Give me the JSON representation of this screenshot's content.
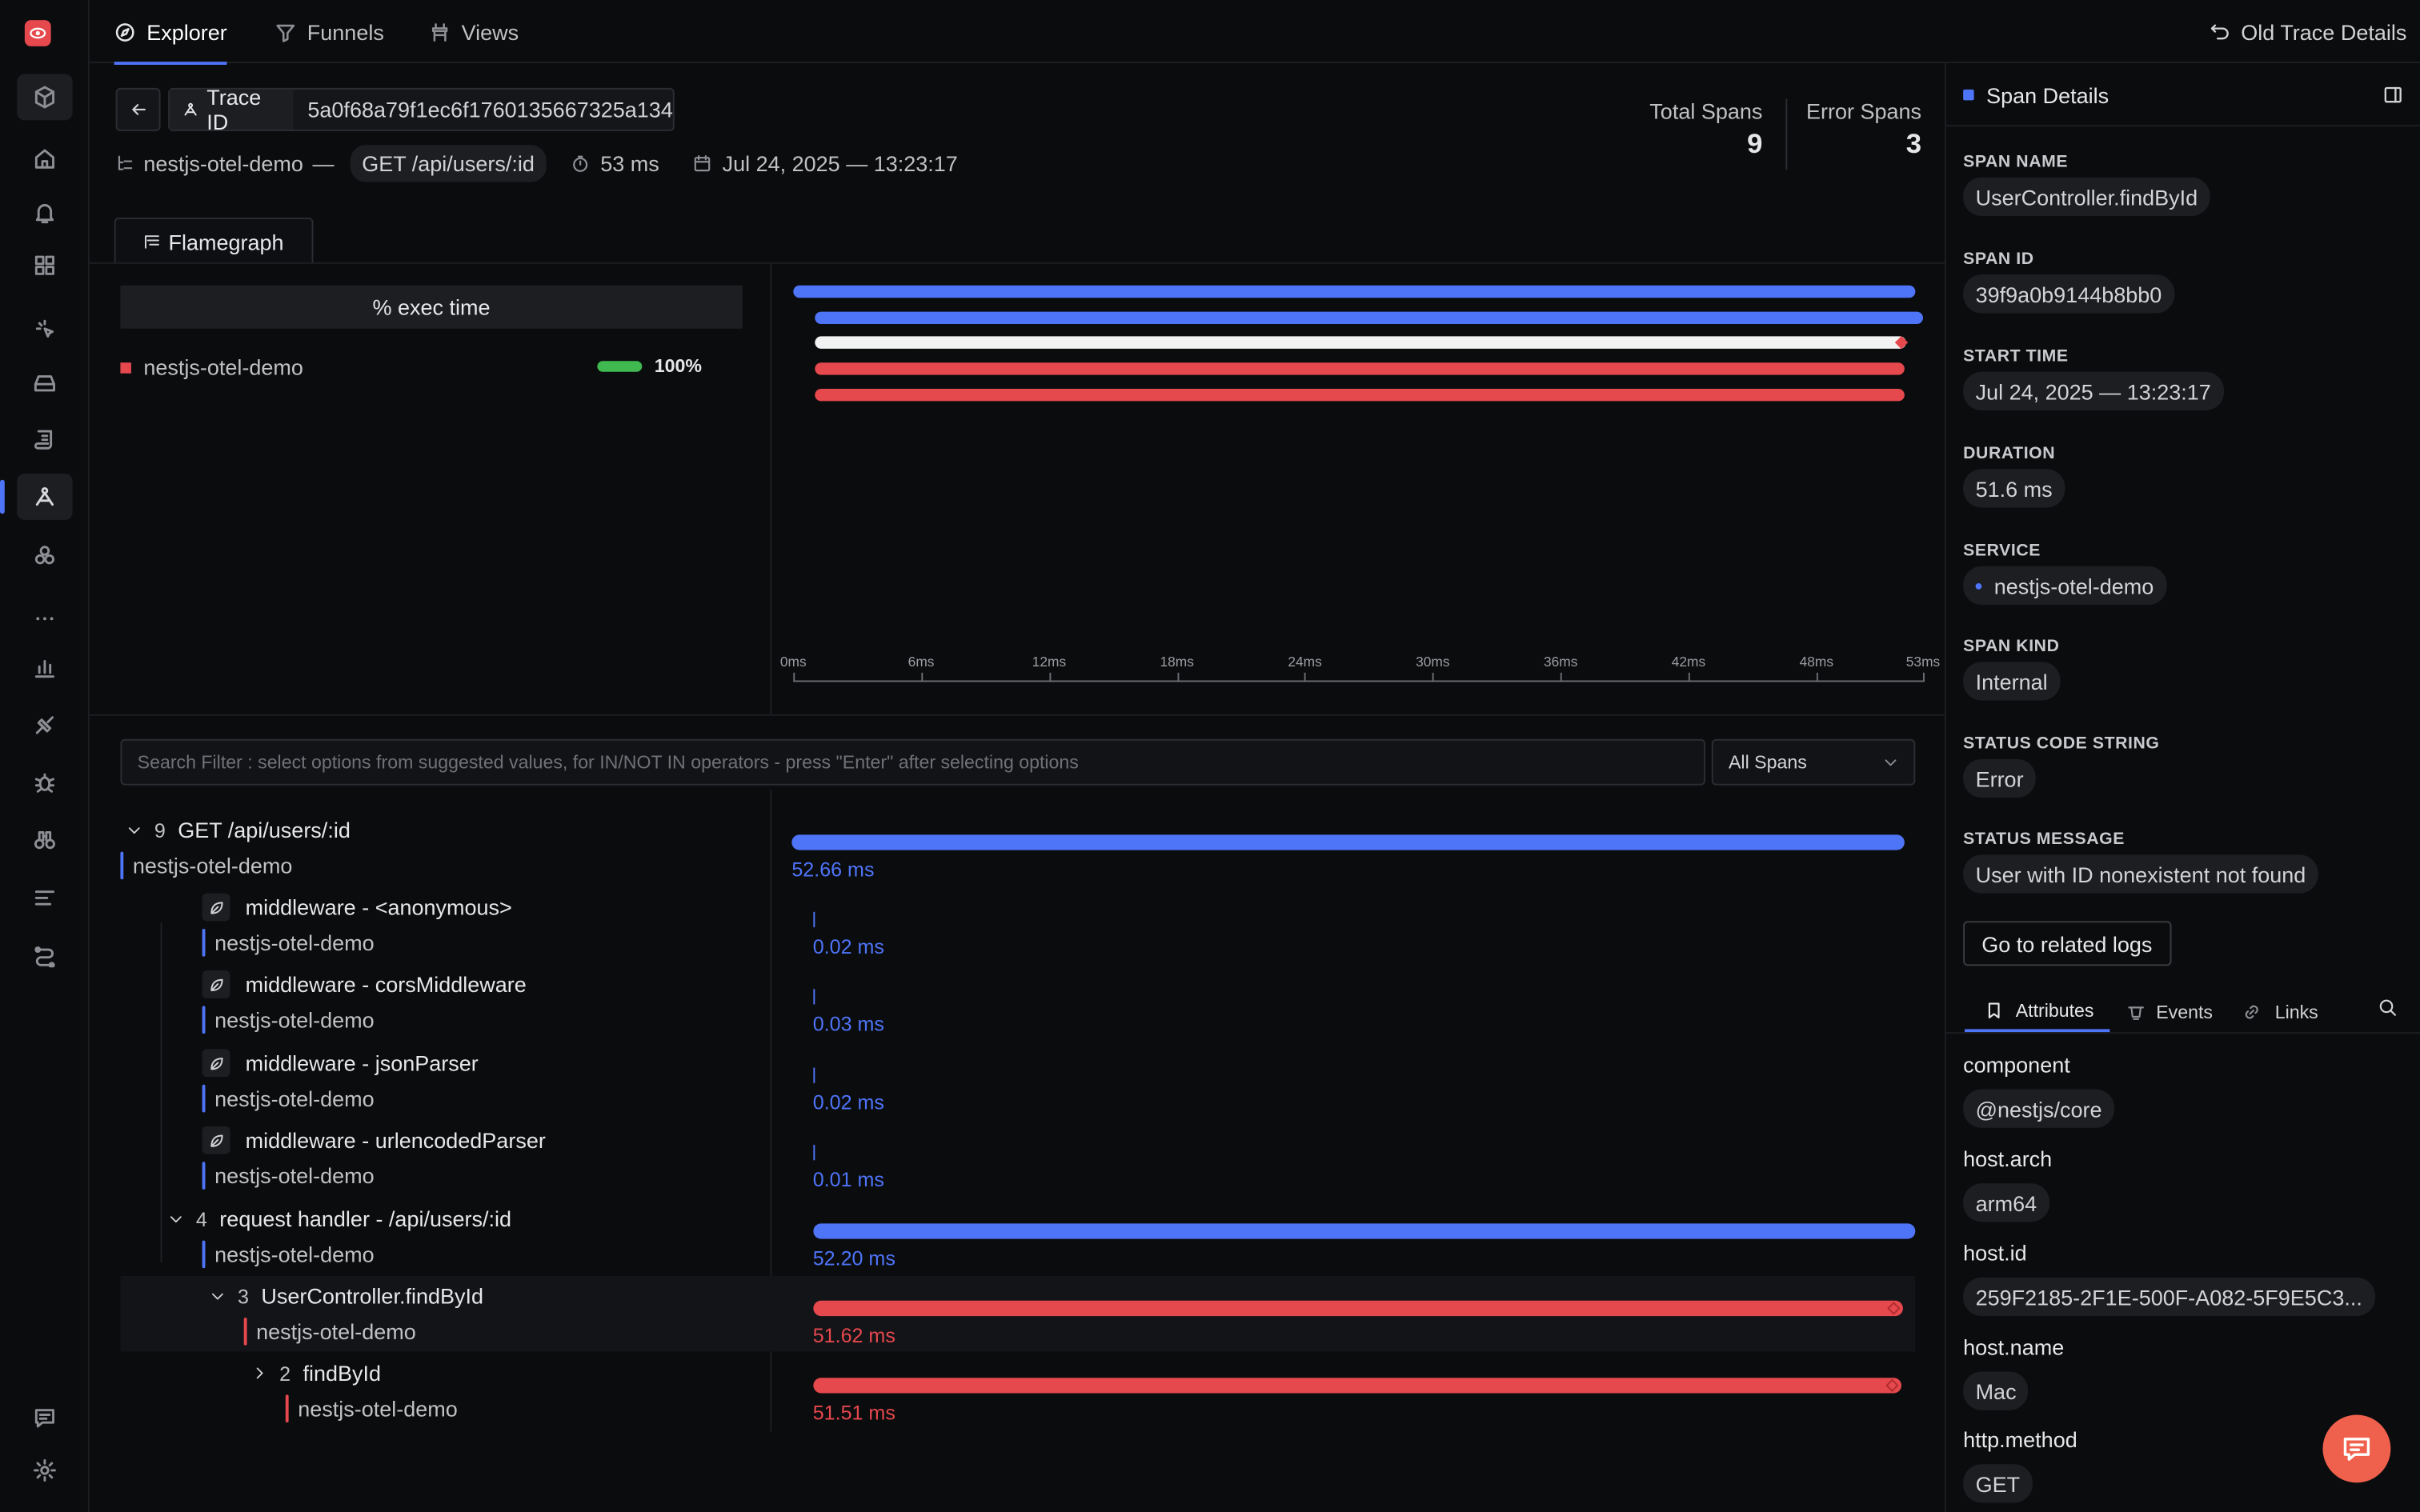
{
  "topnav": {
    "tabs": [
      {
        "label": "Explorer"
      },
      {
        "label": "Funnels"
      },
      {
        "label": "Views"
      }
    ],
    "old_trace": "Old Trace Details"
  },
  "header": {
    "trace_id_label": "Trace ID",
    "trace_id": "5a0f68a79f1ec6f1760135667325a134",
    "service": "nestjs-otel-demo",
    "sep": "—",
    "root_span": "GET /api/users/:id",
    "duration": "53 ms",
    "timestamp": "Jul 24, 2025 — 13:23:17",
    "total_spans_label": "Total Spans",
    "total_spans": "9",
    "error_spans_label": "Error Spans",
    "error_spans": "3"
  },
  "flame": {
    "tab": "Flamegraph",
    "exec_header": "% exec time",
    "service": "nestjs-otel-demo",
    "percent": "100%",
    "ticks": [
      "0ms",
      "6ms",
      "12ms",
      "18ms",
      "24ms",
      "30ms",
      "36ms",
      "42ms",
      "48ms",
      "53ms"
    ],
    "bars": [
      {
        "start": 0,
        "end": 52.66,
        "color": "#4e74f8"
      },
      {
        "start": 1,
        "end": 53,
        "color": "#4e74f8"
      },
      {
        "start": 1,
        "end": 52.2,
        "color": "#f2f2f2",
        "dot": true
      },
      {
        "start": 1,
        "end": 52.1,
        "color": "#e5484d"
      },
      {
        "start": 1,
        "end": 52.1,
        "color": "#e5484d"
      }
    ]
  },
  "filter": {
    "placeholder": "Search Filter : select options from suggested values, for IN/NOT IN operators - press \"Enter\" after selecting options",
    "select": "All Spans"
  },
  "spans": [
    {
      "count": "9",
      "name": "GET /api/users/:id",
      "service": "nestjs-otel-demo",
      "duration": "52.66 ms",
      "start": 0,
      "end": 52.66,
      "error": false
    },
    {
      "count": "",
      "name": "middleware - <anonymous>",
      "service": "nestjs-otel-demo",
      "duration": "0.02 ms",
      "start": 1,
      "end": 1.02,
      "error": false
    },
    {
      "count": "",
      "name": "middleware - corsMiddleware",
      "service": "nestjs-otel-demo",
      "duration": "0.03 ms",
      "start": 1,
      "end": 1.03,
      "error": false
    },
    {
      "count": "",
      "name": "middleware - jsonParser",
      "service": "nestjs-otel-demo",
      "duration": "0.02 ms",
      "start": 1,
      "end": 1.02,
      "error": false
    },
    {
      "count": "",
      "name": "middleware - urlencodedParser",
      "service": "nestjs-otel-demo",
      "duration": "0.01 ms",
      "start": 1,
      "end": 1.01,
      "error": false
    },
    {
      "count": "4",
      "name": "request handler - /api/users/:id",
      "service": "nestjs-otel-demo",
      "duration": "52.20 ms",
      "start": 1,
      "end": 53.2,
      "error": false
    },
    {
      "count": "3",
      "name": "UserController.findById",
      "service": "nestjs-otel-demo",
      "duration": "51.62 ms",
      "start": 1,
      "end": 52.62,
      "error": true
    },
    {
      "count": "2",
      "name": "findById",
      "service": "nestjs-otel-demo",
      "duration": "51.51 ms",
      "start": 1,
      "end": 52.51,
      "error": true
    }
  ],
  "panel": {
    "title": "Span Details",
    "fields": [
      {
        "label": "SPAN NAME",
        "value": "UserController.findById"
      },
      {
        "label": "SPAN ID",
        "value": "39f9a0b9144b8bb0"
      },
      {
        "label": "START TIME",
        "value": "Jul 24, 2025 — 13:23:17"
      },
      {
        "label": "DURATION",
        "value": "51.6 ms"
      },
      {
        "label": "SERVICE",
        "value": "nestjs-otel-demo"
      },
      {
        "label": "SPAN KIND",
        "value": "Internal"
      },
      {
        "label": "STATUS CODE STRING",
        "value": "Error"
      },
      {
        "label": "STATUS MESSAGE",
        "value": "User with ID nonexistent not found"
      }
    ],
    "logs_button": "Go to related logs",
    "tabs": [
      "Attributes",
      "Events",
      "Links"
    ],
    "attributes": [
      {
        "key": "component",
        "value": "@nestjs/core"
      },
      {
        "key": "host.arch",
        "value": "arm64"
      },
      {
        "key": "host.id",
        "value": "259F2185-2F1E-500F-A082-5F9E5C3..."
      },
      {
        "key": "host.name",
        "value": "Mac"
      },
      {
        "key": "http.method",
        "value": "GET"
      }
    ]
  },
  "colors": {
    "accent": "#4e74f8",
    "error": "#e5484d",
    "ok": "#3fb950"
  }
}
